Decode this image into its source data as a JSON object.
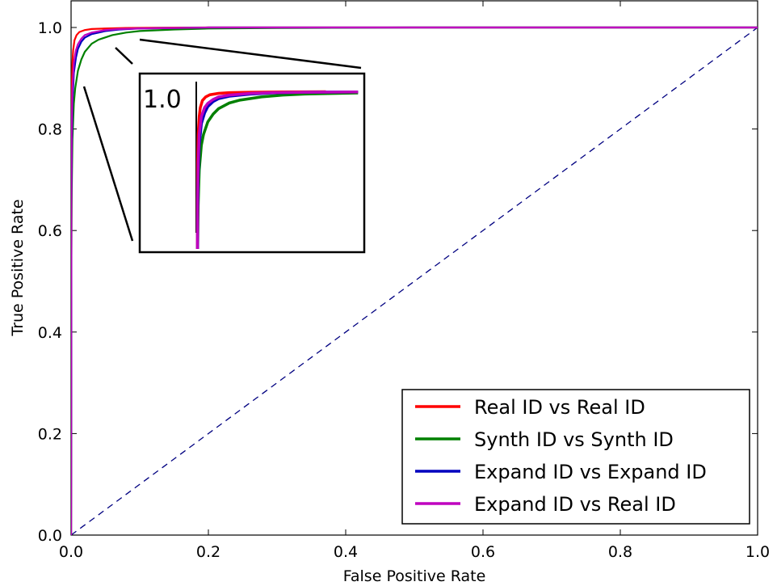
{
  "chart_data": {
    "type": "line",
    "title": "",
    "xlabel": "False Positive Rate",
    "ylabel": "True Positive Rate",
    "xlim": [
      0.0,
      1.0
    ],
    "ylim": [
      0.0,
      1.05
    ],
    "x_ticks": [
      "0.0",
      "0.2",
      "0.4",
      "0.6",
      "0.8",
      "1.0"
    ],
    "y_ticks": [
      "0.0",
      "0.2",
      "0.4",
      "0.6",
      "0.8",
      "1.0"
    ],
    "grid": false,
    "legend_position": "lower-right",
    "series": [
      {
        "name": "Real ID vs Real ID",
        "color": "#ff0000",
        "x": [
          0,
          0.0005,
          0.001,
          0.002,
          0.003,
          0.005,
          0.008,
          0.012,
          0.02,
          0.03,
          0.05,
          0.08,
          0.12,
          0.2,
          0.4,
          0.6,
          0.8,
          1.0
        ],
        "y": [
          0,
          0.8,
          0.88,
          0.93,
          0.955,
          0.975,
          0.985,
          0.991,
          0.995,
          0.997,
          0.998,
          0.999,
          0.9995,
          1.0,
          1.0,
          1.0,
          1.0,
          1.0
        ]
      },
      {
        "name": "Synth ID vs Synth ID",
        "color": "#008000",
        "x": [
          0,
          0.0005,
          0.001,
          0.002,
          0.004,
          0.006,
          0.01,
          0.015,
          0.02,
          0.03,
          0.04,
          0.06,
          0.08,
          0.1,
          0.15,
          0.2,
          0.3,
          0.5,
          0.7,
          1.0
        ],
        "y": [
          0,
          0.55,
          0.68,
          0.78,
          0.85,
          0.88,
          0.915,
          0.937,
          0.952,
          0.968,
          0.976,
          0.985,
          0.99,
          0.993,
          0.996,
          0.998,
          0.999,
          1.0,
          1.0,
          1.0
        ]
      },
      {
        "name": "Expand ID vs Expand ID",
        "color": "#0000bf",
        "x": [
          0,
          0.0005,
          0.001,
          0.002,
          0.004,
          0.007,
          0.01,
          0.015,
          0.02,
          0.03,
          0.05,
          0.07,
          0.1,
          0.15,
          0.2,
          0.3,
          0.5,
          0.7,
          1.0
        ],
        "y": [
          0,
          0.65,
          0.76,
          0.85,
          0.91,
          0.94,
          0.958,
          0.972,
          0.98,
          0.987,
          0.993,
          0.996,
          0.998,
          0.999,
          1.0,
          1.0,
          1.0,
          1.0,
          1.0
        ]
      },
      {
        "name": "Expand ID vs Real ID",
        "color": "#bf00bf",
        "x": [
          0,
          0.0005,
          0.001,
          0.002,
          0.004,
          0.007,
          0.01,
          0.015,
          0.02,
          0.03,
          0.05,
          0.07,
          0.1,
          0.15,
          0.2,
          0.3,
          0.5,
          0.7,
          1.0
        ],
        "y": [
          0,
          0.7,
          0.8,
          0.88,
          0.93,
          0.955,
          0.967,
          0.978,
          0.985,
          0.99,
          0.995,
          0.997,
          0.998,
          0.999,
          1.0,
          1.0,
          1.0,
          1.0,
          1.0
        ]
      }
    ],
    "reference_line": {
      "style": "dashed",
      "color": "#000080",
      "x": [
        0,
        1
      ],
      "y": [
        0,
        1
      ]
    },
    "inset": {
      "label": "1.0",
      "xlim": [
        0.0,
        0.14
      ],
      "ylim": [
        0.6,
        1.03
      ]
    }
  }
}
